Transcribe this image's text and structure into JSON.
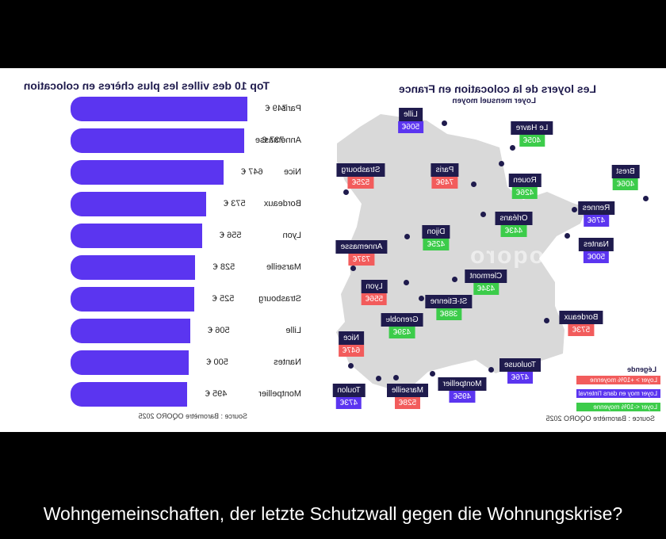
{
  "caption": "Wohngemeinschaften, der letzte Schutzwall gegen die Wohnungskrise?",
  "colors": {
    "above": "#f25c5c",
    "within": "#5b35f0",
    "below": "#3ccc4a",
    "bar": "#5b35f0",
    "navy": "#1f1b4d",
    "map": "#d9d9d9"
  },
  "left_chart": {
    "title": "Top 10 des villes les plus chères en colocation",
    "source": "Source : Baromètre OQORO 2025"
  },
  "right_chart": {
    "title": "Les loyers de la colocation en France",
    "subtitle": "Loyer mensuel moyen",
    "source": "Source : Baromètre OQORO 2025",
    "watermark": "oqoro",
    "legend": {
      "title": "Légende",
      "items": [
        {
          "label": "Loyer > +10% moyenne",
          "color": "#f25c5c"
        },
        {
          "label": "Loyer moy en dans l'interval",
          "color": "#5b35f0"
        },
        {
          "label": "Loyer <-10% moyenne",
          "color": "#3ccc4a"
        }
      ]
    }
  },
  "chart_data": [
    {
      "type": "bar",
      "orientation": "horizontal",
      "title": "Top 10 des villes les plus chères en colocation",
      "categories": [
        "Paris",
        "Annemasse",
        "Nice",
        "Bordeaux",
        "Lyon",
        "Marseille",
        "Strasbourg",
        "Lille",
        "Nantes",
        "Montpellier"
      ],
      "values": [
        749,
        737,
        647,
        573,
        556,
        528,
        525,
        506,
        500,
        495
      ],
      "value_labels": [
        "749 €",
        "737 €",
        "647 €",
        "573 €",
        "556 €",
        "528 €",
        "525 €",
        "506 €",
        "500 €",
        "495 €"
      ],
      "xlim": [
        0,
        749
      ]
    },
    {
      "type": "map",
      "title": "Les loyers de la colocation en France",
      "subtitle": "Loyer mensuel moyen",
      "cities": [
        {
          "name": "Lille",
          "price": "506€",
          "category": "within"
        },
        {
          "name": "Le Havre",
          "price": "405€",
          "category": "below"
        },
        {
          "name": "Paris",
          "price": "749€",
          "category": "above"
        },
        {
          "name": "Rouen",
          "price": "426€",
          "category": "below"
        },
        {
          "name": "Strasbourg",
          "price": "525€",
          "category": "above"
        },
        {
          "name": "Brest",
          "price": "406€",
          "category": "below"
        },
        {
          "name": "Rennes",
          "price": "476€",
          "category": "within"
        },
        {
          "name": "Orléans",
          "price": "443€",
          "category": "below"
        },
        {
          "name": "Dijon",
          "price": "425€",
          "category": "below"
        },
        {
          "name": "Nantes",
          "price": "500€",
          "category": "within"
        },
        {
          "name": "Annemasse",
          "price": "737€",
          "category": "above"
        },
        {
          "name": "Lyon",
          "price": "556€",
          "category": "above"
        },
        {
          "name": "Clermont",
          "price": "434€",
          "category": "below"
        },
        {
          "name": "St-Etienne",
          "price": "388€",
          "category": "below"
        },
        {
          "name": "Grenoble",
          "price": "439€",
          "category": "below"
        },
        {
          "name": "Bordeaux",
          "price": "573€",
          "category": "above"
        },
        {
          "name": "Nice",
          "price": "647€",
          "category": "above"
        },
        {
          "name": "Toulouse",
          "price": "476€",
          "category": "within"
        },
        {
          "name": "Montpellier",
          "price": "495€",
          "category": "within"
        },
        {
          "name": "Marseille",
          "price": "528€",
          "category": "above"
        },
        {
          "name": "Toulon",
          "price": "473€",
          "category": "within"
        }
      ]
    }
  ]
}
